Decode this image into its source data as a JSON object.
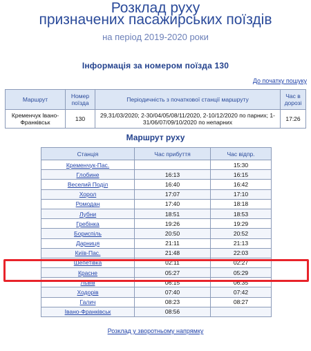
{
  "header": {
    "title_line1": "Розклад руху",
    "title_line2": "призначених пасажирських поїздів",
    "period": "на період 2019-2020 роки"
  },
  "info": {
    "title": "Інформація за номером поїзда 130",
    "back_link": "До початку пошуку",
    "headers": [
      "Маршрут",
      "Номер поїзда",
      "Періодичність з початкової станції маршруту",
      "Час в дорозі"
    ],
    "row": {
      "route": "Кременчук Івано-Франківськ",
      "number": "130",
      "periodicity": "29,31/03/2020; 2-30/04/05/08/11/2020, 2-10/12/2020 по парних; 1-31/06/07/09/10/2020 по непарних",
      "travel_time": "17:26"
    }
  },
  "route": {
    "title": "Маршрут руху",
    "headers": [
      "Станція",
      "Час прибуття",
      "Час відпр."
    ],
    "rows": [
      {
        "station": "Кременчук-Пас.",
        "arrival": "",
        "departure": "15:30"
      },
      {
        "station": "Глобине",
        "arrival": "16:13",
        "departure": "16:15"
      },
      {
        "station": "Веселий Поділ",
        "arrival": "16:40",
        "departure": "16:42"
      },
      {
        "station": "Хорол",
        "arrival": "17:07",
        "departure": "17:10"
      },
      {
        "station": "Ромодан",
        "arrival": "17:40",
        "departure": "18:18"
      },
      {
        "station": "Лубни",
        "arrival": "18:51",
        "departure": "18:53"
      },
      {
        "station": "Гребінка",
        "arrival": "19:26",
        "departure": "19:29"
      },
      {
        "station": "Бориспіль",
        "arrival": "20:50",
        "departure": "20:52"
      },
      {
        "station": "Дарниця",
        "arrival": "21:11",
        "departure": "21:13"
      },
      {
        "station": "Київ-Пас.",
        "arrival": "21:48",
        "departure": "22:03"
      },
      {
        "station": "Шепетівка",
        "arrival": "02:11",
        "departure": "02:27"
      },
      {
        "station": "Красне",
        "arrival": "05:27",
        "departure": "05:29"
      },
      {
        "station": "Львів",
        "arrival": "06:15",
        "departure": "06:35"
      },
      {
        "station": "Ходорів",
        "arrival": "07:40",
        "departure": "07:42"
      },
      {
        "station": "Галич",
        "arrival": "08:23",
        "departure": "08:27"
      },
      {
        "station": "Івано-Франківськ",
        "arrival": "08:56",
        "departure": ""
      }
    ],
    "reverse_link": "Розклад у зворотньому напрямку"
  },
  "colors": {
    "title": "#2a4a9a",
    "link": "#2244aa",
    "header_bg": "#dce6f5",
    "highlight": "#e8232a"
  }
}
